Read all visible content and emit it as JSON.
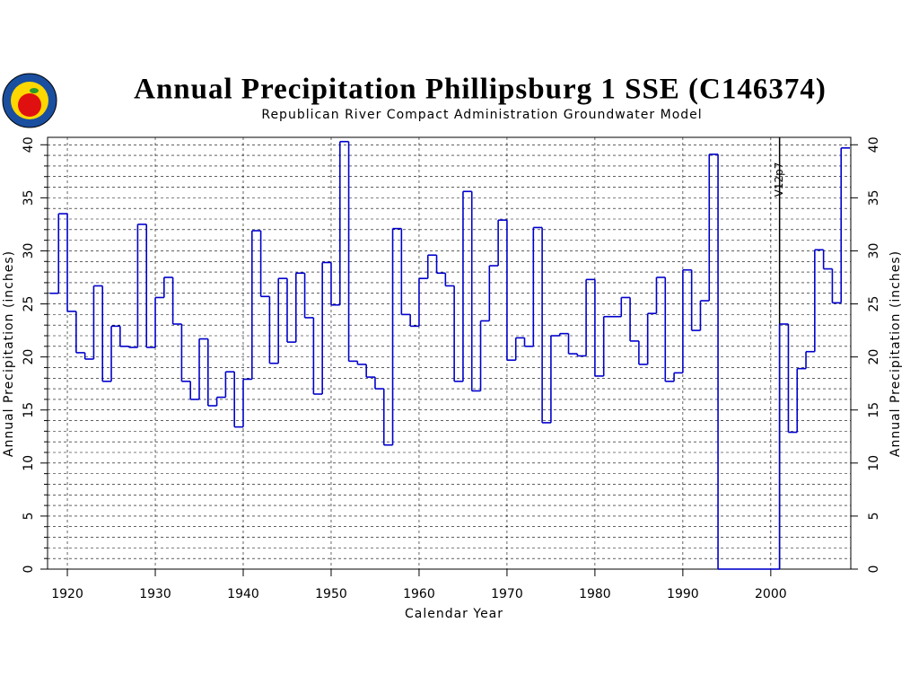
{
  "chart_data": {
    "type": "step",
    "title": "Annual Precipitation Phillipsburg 1 SSE (C146374)",
    "subtitle": "Republican River Compact Administration Groundwater Model",
    "xlabel": "Calendar Year",
    "ylabel": "Annual Precipitation (inches)",
    "y2label": "Annual Precipitation (inches)",
    "annotation": {
      "text": "V12p7",
      "x": 2001
    },
    "x": [
      1918,
      1919,
      1920,
      1921,
      1922,
      1923,
      1924,
      1925,
      1926,
      1927,
      1928,
      1929,
      1930,
      1931,
      1932,
      1933,
      1934,
      1935,
      1936,
      1937,
      1938,
      1939,
      1940,
      1941,
      1942,
      1943,
      1944,
      1945,
      1946,
      1947,
      1948,
      1949,
      1950,
      1951,
      1952,
      1953,
      1954,
      1955,
      1956,
      1957,
      1958,
      1959,
      1960,
      1961,
      1962,
      1963,
      1964,
      1965,
      1966,
      1967,
      1968,
      1969,
      1970,
      1971,
      1972,
      1973,
      1974,
      1975,
      1976,
      1977,
      1978,
      1979,
      1980,
      1981,
      1982,
      1983,
      1984,
      1985,
      1986,
      1987,
      1988,
      1989,
      1990,
      1991,
      1992,
      1993,
      1994,
      1995,
      1996,
      1997,
      1998,
      1999,
      2000,
      2001,
      2002,
      2003,
      2004,
      2005,
      2006,
      2007,
      2008
    ],
    "series": [
      {
        "color": "#0000cc",
        "values": [
          26.0,
          33.5,
          24.3,
          20.4,
          19.8,
          26.7,
          17.7,
          22.9,
          21.0,
          20.9,
          32.5,
          20.9,
          25.6,
          27.5,
          23.1,
          17.7,
          16.0,
          21.7,
          15.4,
          16.2,
          18.6,
          13.4,
          17.9,
          31.9,
          25.7,
          19.4,
          27.4,
          21.4,
          27.9,
          23.7,
          16.5,
          28.9,
          24.9,
          40.3,
          19.6,
          19.3,
          18.1,
          17.0,
          11.7,
          32.1,
          24.0,
          22.9,
          27.4,
          29.6,
          27.9,
          26.7,
          17.7,
          35.6,
          16.8,
          23.4,
          28.6,
          32.9,
          19.7,
          21.8,
          21.0,
          32.2,
          13.8,
          22.0,
          22.2,
          20.3,
          20.1,
          27.3,
          18.2,
          23.8,
          23.8,
          25.6,
          21.5,
          19.3,
          24.1,
          27.5,
          17.7,
          18.5,
          28.2,
          22.5,
          25.3,
          39.1,
          0,
          0,
          0,
          0,
          0,
          0,
          0,
          23.1,
          12.9,
          18.9,
          20.5,
          30.1,
          28.3,
          25.1,
          39.7
        ]
      }
    ],
    "xlim": [
      1917.75,
      2009.1
    ],
    "ylim": [
      0,
      40.7
    ],
    "y2lim": [
      0,
      40.7
    ],
    "xticks": [
      1920,
      1930,
      1940,
      1950,
      1960,
      1970,
      1980,
      1990,
      2000
    ],
    "yticks": [
      0,
      5,
      10,
      15,
      20,
      25,
      30,
      35,
      40
    ],
    "y2ticks": [
      0,
      5,
      10,
      15,
      20,
      25,
      30,
      35,
      40
    ],
    "minor_yticks": [
      1,
      2,
      3,
      4,
      6,
      7,
      8,
      9,
      11,
      12,
      13,
      14,
      16,
      17,
      18,
      19,
      21,
      22,
      23,
      24,
      26,
      27,
      28,
      29,
      31,
      32,
      33,
      34,
      36,
      37,
      38,
      39
    ],
    "grid": true
  }
}
